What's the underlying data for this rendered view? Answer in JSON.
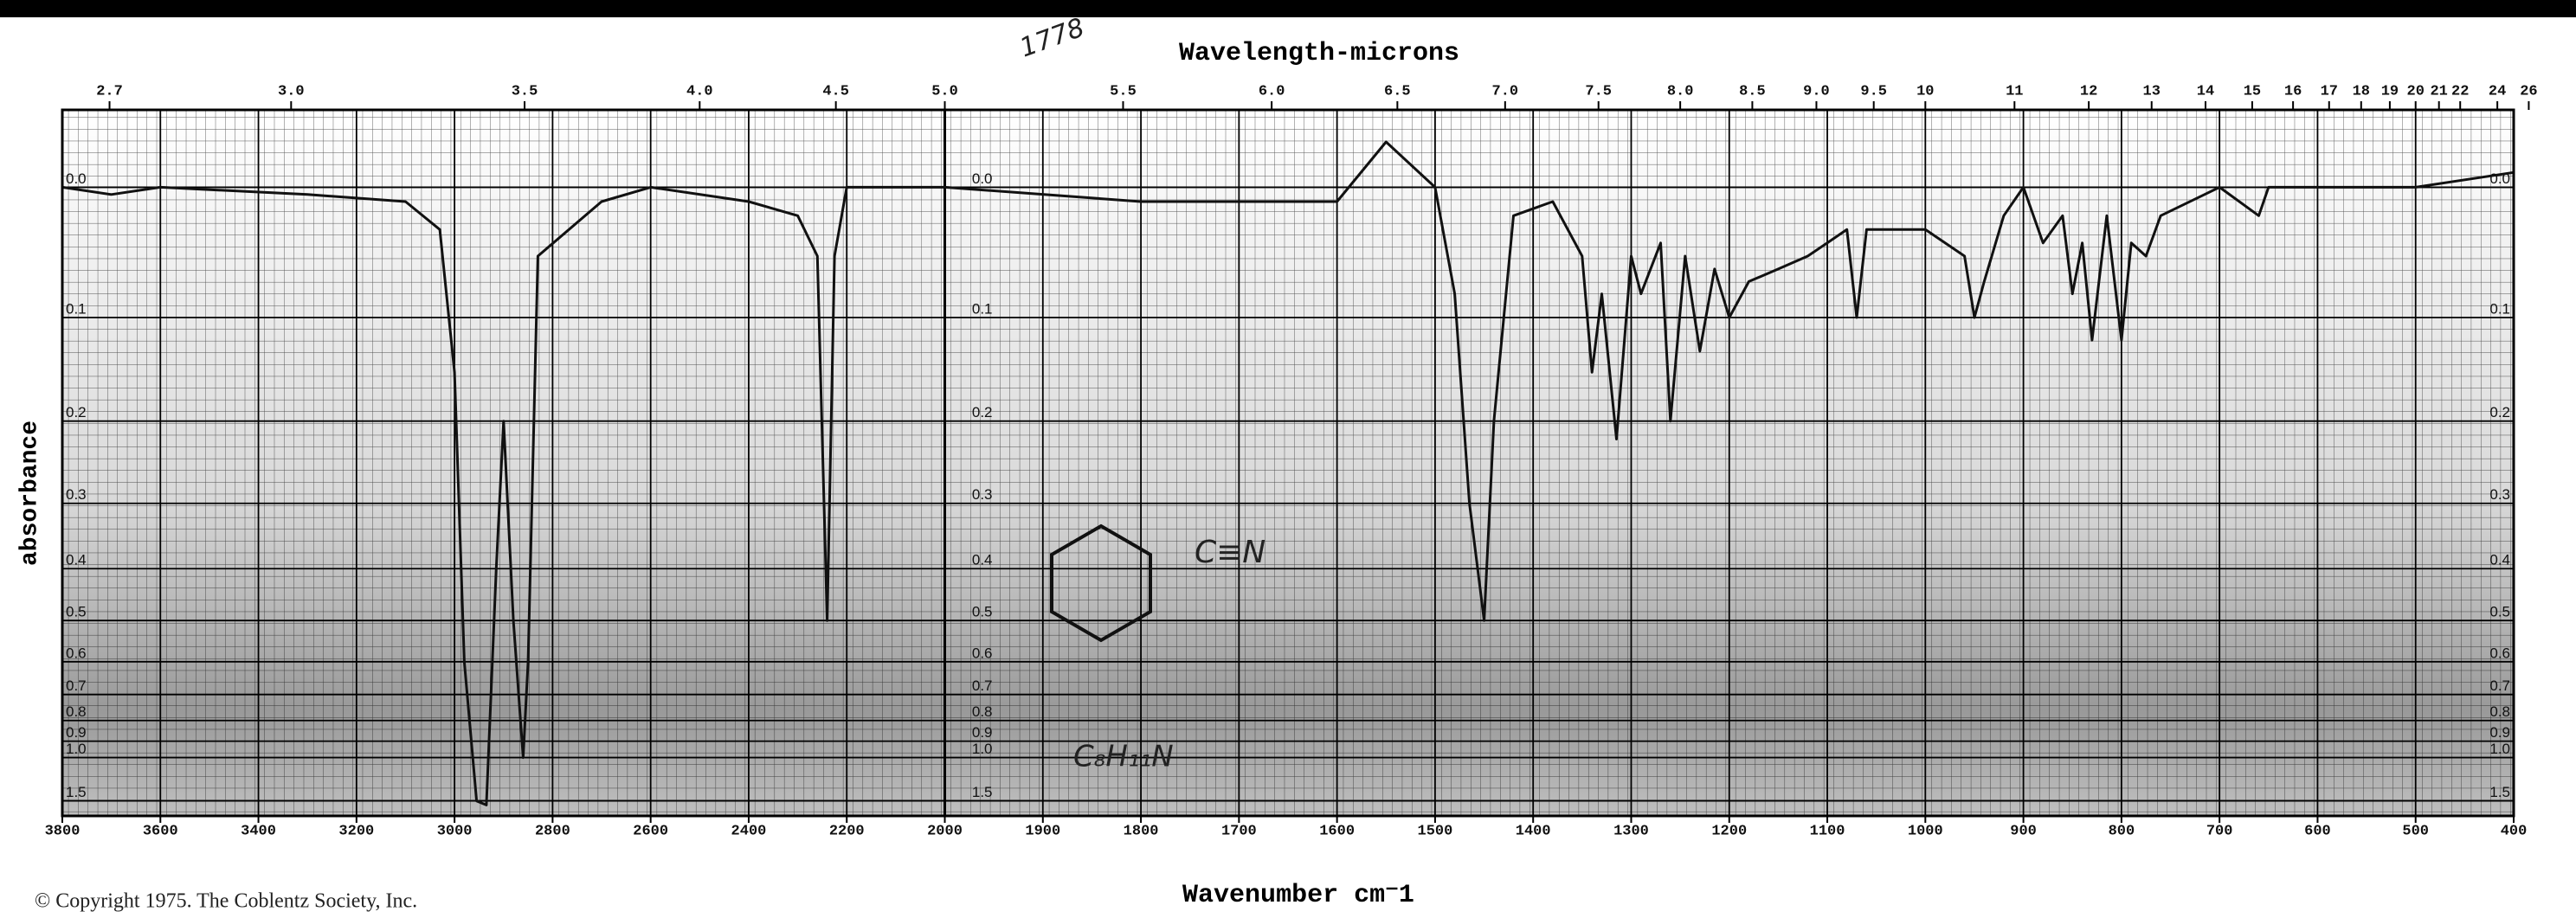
{
  "chart_data": {
    "type": "line",
    "title": "Wavelength-microns",
    "xlabel": "Wavenumber cm⁻1",
    "ylabel": "absorbance",
    "copyright": "© Copyright 1975. The Coblentz Society, Inc.",
    "annotations": [
      "1778",
      "C≡N",
      "C₈H₁₁N"
    ],
    "xlim": [
      3800,
      400
    ],
    "x_scale_break": 2000,
    "xticks": [
      3800,
      3600,
      3400,
      3200,
      3000,
      2800,
      2600,
      2400,
      2200,
      2000,
      1900,
      1800,
      1700,
      1600,
      1500,
      1400,
      1300,
      1200,
      1100,
      1000,
      900,
      800,
      700,
      600,
      500,
      400
    ],
    "x2ticks": [
      2.7,
      {
        "value": 3.0,
        "label": "3.0"
      },
      3.5,
      {
        "value": 4.0,
        "label": "4.0"
      },
      4.5,
      {
        "value": 5.0,
        "label": "5.0"
      },
      5.5,
      {
        "value": 6.0,
        "label": "6.0"
      },
      6.5,
      {
        "value": 7.0,
        "label": "7.0"
      },
      7.5,
      {
        "value": 8.0,
        "label": "8.0"
      },
      8.5,
      {
        "value": 9.0,
        "label": "9.0"
      },
      9.5,
      10,
      11,
      12,
      13,
      14,
      15,
      16,
      17,
      18,
      19,
      20,
      21,
      22,
      24,
      26
    ],
    "ylim": [
      -0.05,
      2.1
    ],
    "yscale": "transmittance",
    "yticks": [
      {
        "value": 0,
        "label": "0.0"
      },
      0.1,
      0.2,
      0.3,
      0.4,
      0.5,
      0.6,
      0.7,
      0.8,
      0.9,
      {
        "value": 1,
        "label": "1.0"
      },
      1.5
    ],
    "grid": true,
    "series": [
      {
        "color": "#111111",
        "x": [
          3800,
          3700,
          3600,
          3300,
          3100,
          3030,
          3000,
          2980,
          2955,
          2935,
          2915,
          2900,
          2880,
          2860,
          2850,
          2830,
          2700,
          2600,
          2400,
          2300,
          2260,
          2240,
          2225,
          2200,
          2000,
          1800,
          1600,
          1550,
          1500,
          1480,
          1465,
          1450,
          1440,
          1420,
          1380,
          1350,
          1340,
          1330,
          1315,
          1300,
          1290,
          1270,
          1260,
          1245,
          1230,
          1215,
          1200,
          1180,
          1150,
          1120,
          1100,
          1080,
          1070,
          1060,
          1000,
          960,
          950,
          940,
          920,
          900,
          880,
          860,
          850,
          840,
          830,
          815,
          800,
          790,
          775,
          760,
          700,
          660,
          650,
          600,
          500,
          400
        ],
        "values": [
          0.0,
          0.005,
          0.0,
          0.005,
          0.01,
          0.03,
          0.15,
          0.6,
          1.5,
          1.6,
          0.4,
          0.2,
          0.5,
          1.0,
          0.6,
          0.05,
          0.01,
          0.0,
          0.01,
          0.02,
          0.05,
          0.5,
          0.05,
          0.0,
          0.0,
          0.01,
          0.01,
          -0.03,
          0.0,
          0.08,
          0.3,
          0.5,
          0.2,
          0.02,
          0.01,
          0.05,
          0.15,
          0.08,
          0.22,
          0.05,
          0.08,
          0.04,
          0.2,
          0.05,
          0.13,
          0.06,
          0.1,
          0.07,
          0.06,
          0.05,
          0.04,
          0.03,
          0.1,
          0.03,
          0.03,
          0.05,
          0.1,
          0.07,
          0.02,
          0.0,
          0.04,
          0.02,
          0.08,
          0.04,
          0.12,
          0.02,
          0.12,
          0.04,
          0.05,
          0.02,
          0.0,
          0.02,
          0.0,
          0.0,
          0.0,
          -0.01
        ]
      }
    ]
  }
}
